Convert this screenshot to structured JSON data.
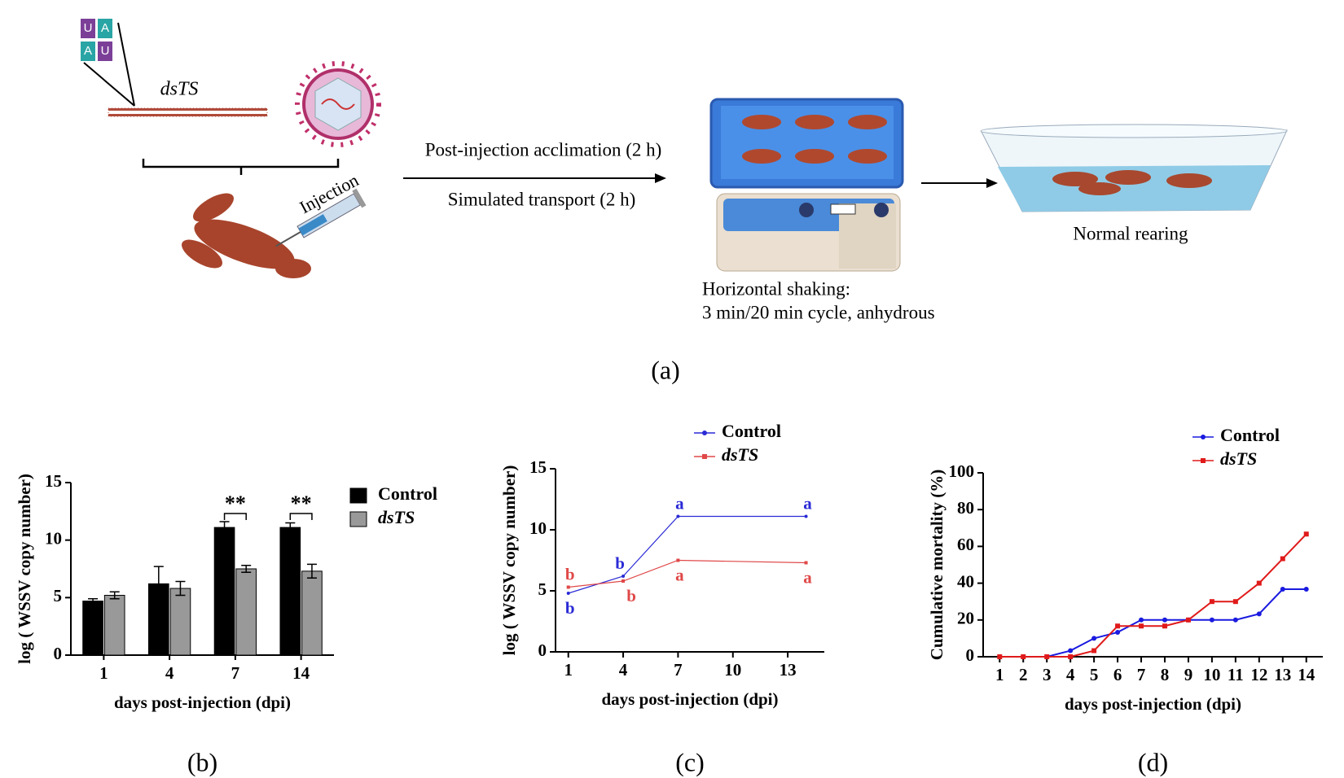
{
  "panel_a": {
    "caption": "(a)",
    "rna_letters": [
      "U",
      "A",
      "A",
      "U"
    ],
    "dsrna_label": "dsTS",
    "injection_label": "Injection",
    "step1_top": "Post-injection acclimation (2 h)",
    "step1_bottom": "Simulated transport (2 h)",
    "step2_line1": "Horizontal shaking:",
    "step2_line2": "3 min/20 min cycle, anhydrous",
    "step3": "Normal rearing"
  },
  "chart_data": [
    {
      "type": "bar",
      "caption": "(b)",
      "x_label": "days post-injection (dpi)",
      "y_label": "log ( WSSV copy number)",
      "categories": [
        "1",
        "4",
        "7",
        "14"
      ],
      "ylim": [
        0,
        15
      ],
      "yticks": [
        0,
        5,
        10,
        15
      ],
      "legend": "right",
      "annotations": [
        "**",
        "**"
      ],
      "series": [
        {
          "name": "Control",
          "color": "#000000",
          "values": [
            4.7,
            6.2,
            11.1,
            11.1
          ],
          "errors": [
            0.2,
            1.5,
            0.5,
            0.4
          ]
        },
        {
          "name": "dsTS",
          "color": "#999999",
          "values": [
            5.2,
            5.8,
            7.5,
            7.3
          ],
          "errors": [
            0.3,
            0.6,
            0.3,
            0.6
          ]
        }
      ]
    },
    {
      "type": "line",
      "caption": "(c)",
      "x_label": "days post-injection (dpi)",
      "y_label": "log ( WSSV copy number)",
      "x": [
        1,
        4,
        7,
        14
      ],
      "xlim": [
        0.3,
        15
      ],
      "xticks": [
        1,
        4,
        7,
        10,
        13
      ],
      "ylim": [
        0,
        15
      ],
      "yticks": [
        0,
        5,
        10,
        15
      ],
      "legend": "upper right",
      "series": [
        {
          "name": "Control",
          "color": "#2a2ad6",
          "values": [
            4.8,
            6.2,
            11.1,
            11.1
          ],
          "point_labels": [
            "b",
            "b",
            "a",
            "a"
          ]
        },
        {
          "name": "dsTS",
          "color": "#e04848",
          "values": [
            5.3,
            5.8,
            7.5,
            7.3
          ],
          "point_labels": [
            "b",
            "b",
            "a",
            "a"
          ]
        }
      ]
    },
    {
      "type": "line",
      "caption": "(d)",
      "x_label": "days post-injection (dpi)",
      "y_label": "Cumulative mortality (%)",
      "x": [
        1,
        2,
        3,
        4,
        5,
        6,
        7,
        8,
        9,
        10,
        11,
        12,
        13,
        14
      ],
      "xlim": [
        0.3,
        14.7
      ],
      "xticks": [
        1,
        2,
        3,
        4,
        5,
        6,
        7,
        8,
        9,
        10,
        11,
        12,
        13,
        14
      ],
      "ylim": [
        0,
        100
      ],
      "yticks": [
        0,
        20,
        40,
        60,
        80,
        100
      ],
      "legend": "upper right",
      "series": [
        {
          "name": "Control",
          "color": "#1a1ae0",
          "values": [
            0,
            0,
            0,
            3.3,
            10,
            13.3,
            20,
            20,
            20,
            20,
            20,
            23.3,
            36.7,
            36.7
          ]
        },
        {
          "name": "dsTS",
          "color": "#e01a1a",
          "values": [
            0,
            0,
            0,
            0,
            3.3,
            16.7,
            16.7,
            16.7,
            20,
            30,
            30,
            40,
            53.3,
            66.7
          ]
        }
      ]
    }
  ]
}
